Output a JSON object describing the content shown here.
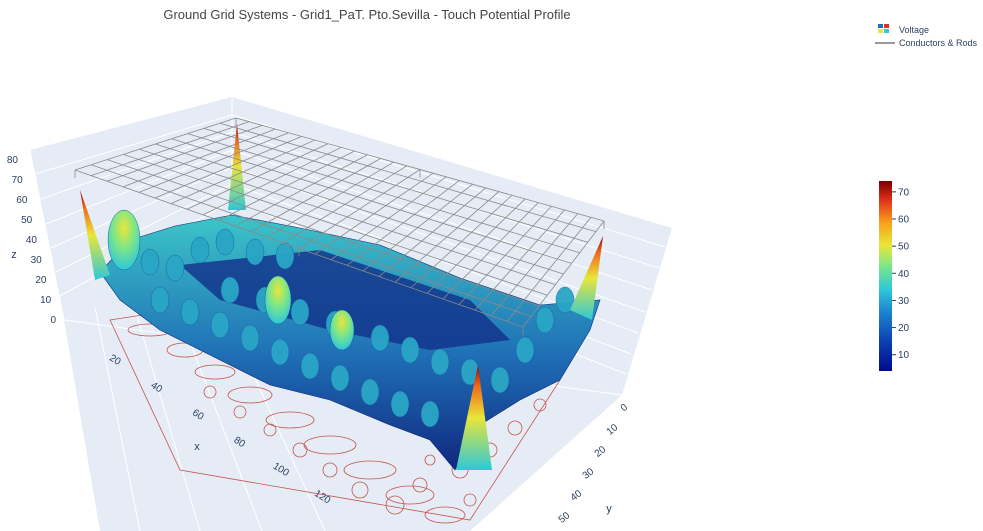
{
  "chart_data": {
    "type": "surface",
    "title": "Ground Grid Systems - Grid1_PaT. Pto.Sevilla - Touch Potential Profile",
    "xlabel": "x",
    "ylabel": "y",
    "zlabel": "z",
    "x_ticks": [
      "20",
      "40",
      "60",
      "80",
      "100",
      "120"
    ],
    "y_ticks": [
      "0",
      "10",
      "20",
      "30",
      "40",
      "50"
    ],
    "z_ticks": [
      "0",
      "10",
      "20",
      "30",
      "40",
      "50",
      "60",
      "70",
      "80"
    ],
    "xlim": [
      0,
      135
    ],
    "ylim": [
      0,
      55
    ],
    "zlim": [
      0,
      80
    ],
    "series": [
      {
        "name": "Voltage",
        "kind": "surface"
      },
      {
        "name": "Conductors & Rods",
        "kind": "line",
        "color": "#999999"
      }
    ],
    "colorbar": {
      "ticks": [
        "10",
        "20",
        "30",
        "40",
        "50",
        "60",
        "70"
      ],
      "range": [
        4,
        74
      ],
      "colorscale": "Jet"
    },
    "notable_values": {
      "corner_peak_max": 74,
      "typical_touch_potential": 25
    },
    "legend_position": "top-right",
    "colors": {
      "scene_background": "#e5ecf6",
      "grid_line": "#ffffff",
      "conductors": "#999999",
      "contours": "#c0392b",
      "surface_low": "#0a1f8a",
      "surface_high": "#b01010"
    }
  }
}
